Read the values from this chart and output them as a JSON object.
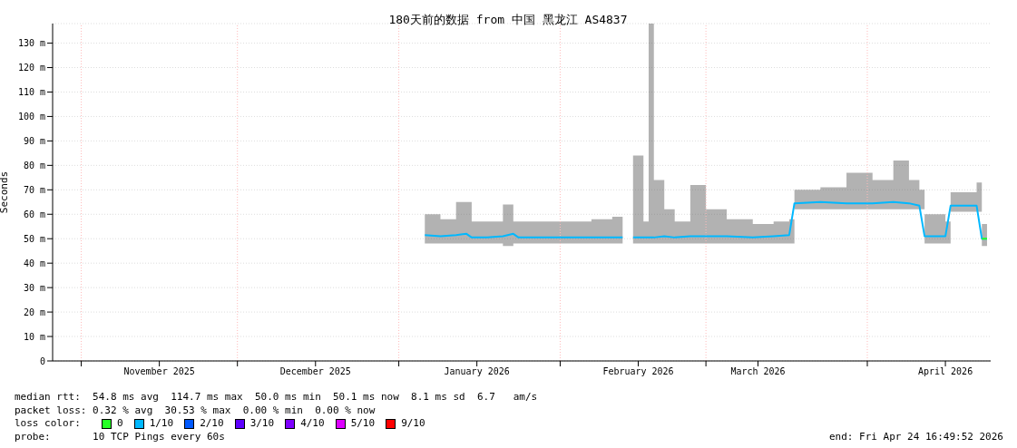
{
  "chart_data": {
    "type": "line",
    "title": "180天前的数据 from 中国 黑龙江 AS4837",
    "ylabel": "Seconds",
    "legend_title": "loss color:",
    "legend": "bottom",
    "grid": true,
    "x": [
      "2026-01-06",
      "2026-01-09",
      "2026-01-12",
      "2026-01-14",
      "2026-01-15",
      "2026-01-18",
      "2026-01-21",
      "2026-01-23",
      "2026-01-24",
      "2026-01-28",
      "2026-02-02",
      "2026-02-07",
      "2026-02-11",
      "2026-02-13",
      "2026-02-14",
      "2026-02-15",
      "2026-02-17",
      "2026-02-18",
      "2026-02-19",
      "2026-02-21",
      "2026-02-23",
      "2026-02-26",
      "2026-03-01",
      "2026-03-05",
      "2026-03-10",
      "2026-03-14",
      "2026-03-17",
      "2026-03-18",
      "2026-03-23",
      "2026-03-28",
      "2026-04-02",
      "2026-04-06",
      "2026-04-09",
      "2026-04-11",
      "2026-04-12",
      "2026-04-16",
      "2026-04-17",
      "2026-04-22",
      "2026-04-23",
      "2026-04-24"
    ],
    "series": [
      {
        "name": "0",
        "color": "#26ff26",
        "values": [
          null,
          null,
          null,
          null,
          null,
          null,
          null,
          null,
          null,
          null,
          null,
          null,
          null,
          null,
          null,
          null,
          null,
          null,
          null,
          null,
          null,
          null,
          null,
          null,
          null,
          null,
          null,
          null,
          null,
          null,
          null,
          null,
          null,
          null,
          null,
          null,
          null,
          null,
          50,
          50
        ]
      },
      {
        "name": "1/10",
        "color": "#00b8ff",
        "values": [
          51.5,
          51,
          51.5,
          52,
          50.5,
          50.5,
          51,
          52,
          50.5,
          50.5,
          50.5,
          50.5,
          50.5,
          50.5,
          null,
          50.5,
          50.5,
          50.5,
          50.5,
          51,
          50.5,
          51,
          51,
          51,
          50.5,
          51,
          51.5,
          64.5,
          65,
          64.5,
          64.5,
          65,
          64.5,
          63.5,
          51,
          51,
          63.5,
          63.5,
          50,
          50
        ],
        "lower": [
          48,
          48,
          48,
          48,
          48,
          48,
          47,
          48,
          48,
          48,
          48,
          48,
          48,
          48,
          null,
          48,
          48,
          48,
          48,
          48,
          48,
          48,
          48,
          48,
          48,
          48,
          48,
          62,
          62,
          62,
          62,
          62,
          62,
          62,
          48,
          48,
          61,
          61,
          47,
          47
        ],
        "upper": [
          60,
          58,
          65,
          65,
          57,
          57,
          64,
          57,
          57,
          57,
          57,
          58,
          59,
          58,
          null,
          84,
          57,
          138,
          74,
          62,
          57,
          72,
          62,
          58,
          56,
          57,
          58,
          70,
          71,
          77,
          74,
          82,
          74,
          70,
          60,
          57,
          69,
          73,
          56,
          56
        ]
      },
      {
        "name": "2/10",
        "color": "#0059ff",
        "values": [
          null,
          null,
          null,
          null,
          null,
          null,
          null,
          null,
          null,
          null,
          null,
          null,
          null,
          null,
          null,
          null,
          null,
          null,
          null,
          null,
          null,
          null,
          null,
          null,
          null,
          null,
          null,
          null,
          null,
          null,
          null,
          null,
          null,
          null,
          null,
          null,
          null,
          null,
          null,
          null
        ]
      },
      {
        "name": "3/10",
        "color": "#5e00ff",
        "values": [
          null,
          null,
          null,
          null,
          null,
          null,
          null,
          null,
          null,
          null,
          null,
          null,
          null,
          null,
          null,
          null,
          null,
          null,
          null,
          null,
          null,
          null,
          null,
          null,
          null,
          null,
          null,
          null,
          null,
          null,
          null,
          null,
          null,
          null,
          null,
          null,
          null,
          null,
          null,
          null
        ]
      },
      {
        "name": "4/10",
        "color": "#7e00ff",
        "values": [
          null,
          null,
          null,
          null,
          null,
          null,
          null,
          null,
          null,
          null,
          null,
          null,
          null,
          null,
          null,
          null,
          null,
          null,
          null,
          null,
          null,
          null,
          null,
          null,
          null,
          null,
          null,
          null,
          null,
          null,
          null,
          null,
          null,
          null,
          null,
          null,
          null,
          null,
          null,
          null
        ]
      },
      {
        "name": "5/10",
        "color": "#dd00ff",
        "values": [
          null,
          null,
          null,
          null,
          null,
          null,
          null,
          null,
          null,
          null,
          null,
          null,
          null,
          null,
          null,
          null,
          null,
          null,
          null,
          null,
          null,
          null,
          null,
          null,
          null,
          null,
          null,
          null,
          null,
          null,
          null,
          null,
          null,
          null,
          null,
          null,
          null,
          null,
          null,
          null
        ]
      },
      {
        "name": "9/10",
        "color": "#ff0000",
        "values": [
          null,
          null,
          null,
          null,
          null,
          null,
          null,
          null,
          null,
          null,
          null,
          null,
          null,
          null,
          null,
          null,
          null,
          null,
          null,
          null,
          null,
          null,
          null,
          null,
          null,
          null,
          null,
          null,
          null,
          null,
          null,
          null,
          null,
          null,
          null,
          null,
          null,
          null,
          null,
          null
        ]
      }
    ],
    "xlim": [
      "2025-10-26T12:00",
      "2026-04-24T16:49"
    ],
    "xticks": [
      {
        "value": "2025-11-01",
        "label": null
      },
      {
        "value": "2025-11-16",
        "label": "November 2025"
      },
      {
        "value": "2025-12-01",
        "label": null
      },
      {
        "value": "2025-12-16",
        "label": "December 2025"
      },
      {
        "value": "2026-01-01",
        "label": null
      },
      {
        "value": "2026-01-16",
        "label": "January 2026"
      },
      {
        "value": "2026-02-01",
        "label": null
      },
      {
        "value": "2026-02-16",
        "label": "February 2026"
      },
      {
        "value": "2026-03-01",
        "label": null
      },
      {
        "value": "2026-03-11",
        "label": "March 2026"
      },
      {
        "value": "2026-04-01",
        "label": null
      },
      {
        "value": "2026-04-16",
        "label": "April 2026"
      }
    ],
    "ylim": [
      0,
      138
    ],
    "yticks": [
      0,
      {
        "value": 10,
        "label": "10 m"
      },
      {
        "value": 20,
        "label": "20 m"
      },
      {
        "value": 30,
        "label": "30 m"
      },
      {
        "value": 40,
        "label": "40 m"
      },
      {
        "value": 50,
        "label": "50 m"
      },
      {
        "value": 60,
        "label": "60 m"
      },
      {
        "value": 70,
        "label": "70 m"
      },
      {
        "value": 80,
        "label": "80 m"
      },
      {
        "value": 90,
        "label": "90 m"
      },
      {
        "value": 100,
        "label": "100 m"
      },
      {
        "value": 110,
        "label": "110 m"
      },
      {
        "value": 120,
        "label": "120 m"
      },
      {
        "value": 130,
        "label": "130 m"
      }
    ],
    "annotations": [
      "median rtt:  54.8 ms avg  114.7 ms max  50.0 ms min  50.1 ms now  8.1 ms sd  6.7   am/s",
      "packet loss: 0.32 % avg  30.53 % max  0.00 % min  0.00 % now",
      "probe:       10 TCP Pings every 60s",
      "end: Fri Apr 24 16:49:52 2026"
    ]
  }
}
